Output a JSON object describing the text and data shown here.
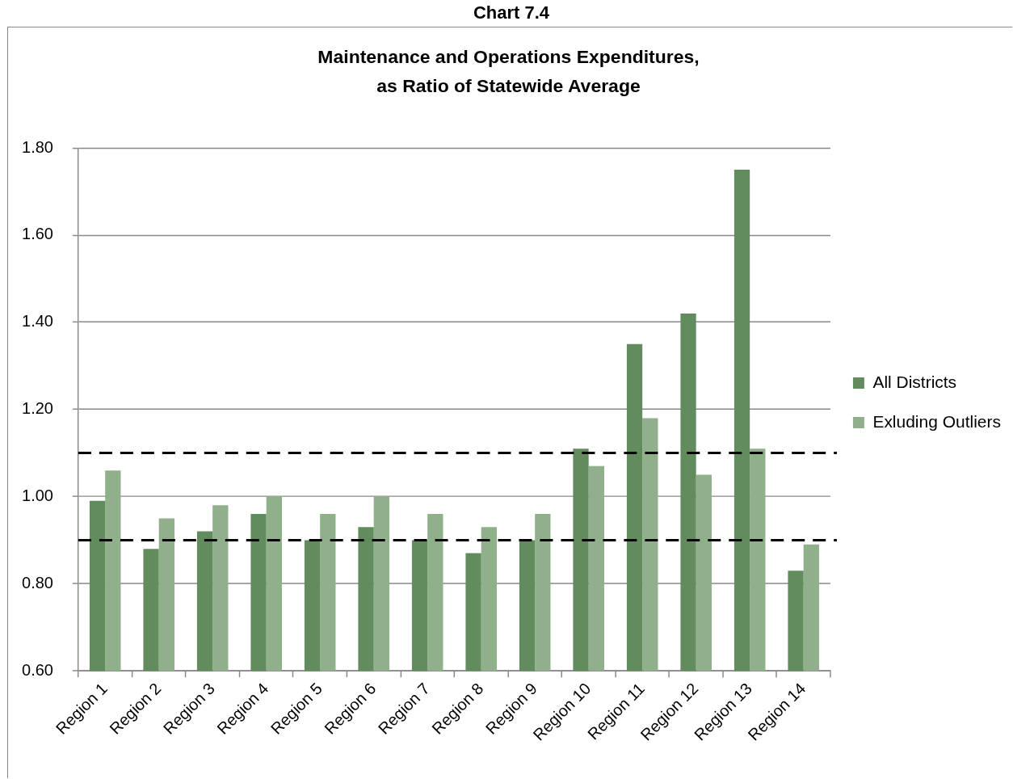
{
  "chart_data": {
    "type": "bar",
    "title": "Maintenance and Operations Expenditures,\nas Ratio of Statewide Average",
    "annotations": [
      "Chart 7.4"
    ],
    "categories": [
      "Region 1",
      "Region 2",
      "Region 3",
      "Region 4",
      "Region 5",
      "Region 6",
      "Region 7",
      "Region 8",
      "Region 9",
      "Region 10",
      "Region 11",
      "Region 12",
      "Region 13",
      "Region 14"
    ],
    "series": [
      {
        "name": "All Districts",
        "color": "#638c5e",
        "values": [
          0.99,
          0.88,
          0.92,
          0.96,
          0.9,
          0.93,
          0.9,
          0.87,
          0.9,
          1.11,
          1.35,
          1.42,
          1.75,
          0.83
        ]
      },
      {
        "name": "Exluding Outliers",
        "color": "#8fb08a",
        "values": [
          1.06,
          0.95,
          0.98,
          1.0,
          0.96,
          1.0,
          0.96,
          0.93,
          0.96,
          1.07,
          1.18,
          1.05,
          1.11,
          0.89
        ]
      }
    ],
    "ylim": [
      0.6,
      1.8
    ],
    "yticks": [
      {
        "value": 0.6,
        "label": "0.60"
      },
      {
        "value": 0.8,
        "label": "0.80"
      },
      {
        "value": 1.0,
        "label": "1.00"
      },
      {
        "value": 1.2,
        "label": "1.20"
      },
      {
        "value": 1.4,
        "label": "1.40"
      },
      {
        "value": 1.6,
        "label": "1.60"
      },
      {
        "value": 1.8,
        "label": "1.80"
      }
    ],
    "grid": "y",
    "legend": "right",
    "ref_lines": [
      {
        "axis": "y",
        "value": 1.1,
        "color": "#000000",
        "line_style": "dashed"
      },
      {
        "axis": "y",
        "value": 0.9,
        "color": "#000000",
        "line_style": "dashed"
      }
    ]
  }
}
